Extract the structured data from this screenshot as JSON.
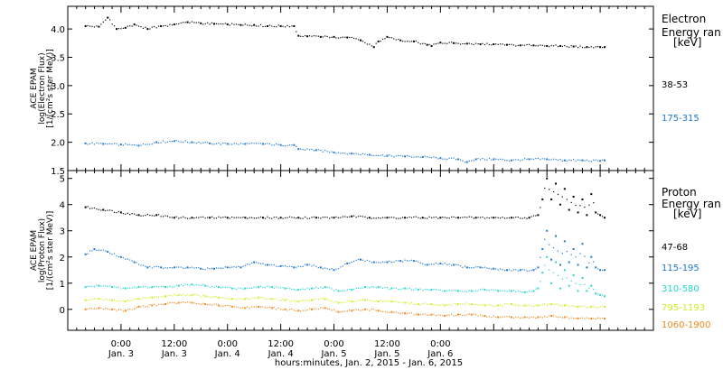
{
  "chart_data": [
    {
      "type": "scatter",
      "ylabel": [
        "ACE EPAM",
        "log(Electron Flux)",
        "[1/(cm²s ster MeV)]"
      ],
      "ylim": [
        1.5,
        4.4
      ],
      "yticks": [
        "1.5",
        "2.0",
        "2.5",
        "3.0",
        "3.5",
        "4.0"
      ],
      "legend_title": [
        "Electron",
        "Energy ran",
        "[keV]"
      ],
      "series": [
        {
          "name": "38-53",
          "color": "#000000",
          "x": [
            -8,
            -5,
            -3,
            -1,
            1,
            3,
            6,
            9,
            12,
            15,
            18,
            21,
            24,
            27,
            30,
            33,
            36,
            39,
            40,
            42,
            45,
            48,
            51,
            54,
            57,
            58,
            60,
            63,
            66,
            69,
            70,
            72,
            75,
            78,
            81,
            84,
            87,
            90,
            93,
            96,
            99,
            102,
            105,
            108,
            109
          ],
          "y": [
            4.05,
            4.04,
            4.2,
            4.0,
            4.02,
            4.08,
            4.0,
            4.05,
            4.08,
            4.12,
            4.1,
            4.09,
            4.08,
            4.07,
            4.07,
            4.05,
            4.05,
            4.05,
            3.88,
            3.87,
            3.86,
            3.86,
            3.85,
            3.8,
            3.68,
            3.78,
            3.86,
            3.8,
            3.78,
            3.72,
            3.7,
            3.76,
            3.75,
            3.74,
            3.73,
            3.73,
            3.72,
            3.71,
            3.71,
            3.7,
            3.7,
            3.69,
            3.68,
            3.68,
            3.68
          ]
        },
        {
          "name": "175-315",
          "color": "#1e78d2",
          "x": [
            -8,
            -4,
            0,
            4,
            8,
            12,
            16,
            20,
            24,
            28,
            32,
            36,
            39,
            40,
            44,
            48,
            52,
            56,
            60,
            64,
            68,
            72,
            76,
            78,
            80,
            84,
            88,
            92,
            96,
            100,
            104,
            108,
            109
          ],
          "y": [
            1.98,
            1.97,
            1.96,
            1.94,
            2.0,
            2.02,
            2.0,
            1.98,
            1.97,
            1.97,
            1.97,
            1.95,
            1.95,
            1.88,
            1.86,
            1.82,
            1.8,
            1.78,
            1.76,
            1.75,
            1.74,
            1.72,
            1.7,
            1.65,
            1.7,
            1.7,
            1.68,
            1.7,
            1.7,
            1.68,
            1.68,
            1.67,
            1.68
          ]
        }
      ]
    },
    {
      "type": "scatter",
      "ylabel": [
        "ACE EPAM",
        "log(Proton Flux)",
        "[1/(cm²s ster MeV)]"
      ],
      "ylim": [
        -0.8,
        5.3
      ],
      "yticks": [
        "0",
        "1",
        "2",
        "3",
        "4",
        "5"
      ],
      "legend_title": [
        "Proton",
        "Energy ran",
        "[keV]"
      ],
      "series": [
        {
          "name": "47-68",
          "color": "#000000",
          "x": [
            -8,
            -4,
            0,
            4,
            8,
            12,
            16,
            20,
            24,
            28,
            32,
            36,
            40,
            44,
            48,
            52,
            56,
            60,
            64,
            68,
            72,
            76,
            80,
            84,
            88,
            92,
            94,
            95,
            96,
            97,
            98,
            99,
            100,
            101,
            102,
            103,
            104,
            105,
            106,
            107,
            108,
            109
          ],
          "y": [
            3.9,
            3.8,
            3.7,
            3.6,
            3.6,
            3.5,
            3.5,
            3.5,
            3.5,
            3.5,
            3.5,
            3.5,
            3.5,
            3.5,
            3.5,
            3.55,
            3.5,
            3.5,
            3.5,
            3.5,
            3.5,
            3.5,
            3.5,
            3.5,
            3.5,
            3.5,
            3.6,
            4.2,
            5.0,
            4.2,
            4.8,
            4.0,
            4.6,
            3.8,
            4.3,
            3.7,
            4.2,
            3.6,
            4.4,
            3.7,
            3.6,
            3.5
          ]
        },
        {
          "name": "115-195",
          "color": "#1e78d2",
          "x": [
            -8,
            -6,
            -3,
            0,
            3,
            6,
            9,
            12,
            15,
            18,
            21,
            24,
            27,
            30,
            33,
            36,
            39,
            42,
            45,
            48,
            51,
            54,
            57,
            60,
            63,
            66,
            69,
            72,
            75,
            78,
            81,
            84,
            87,
            90,
            93,
            94,
            95,
            96,
            97,
            98,
            99,
            100,
            101,
            102,
            103,
            104,
            105,
            106,
            107,
            108,
            109
          ],
          "y": [
            2.1,
            2.3,
            2.2,
            2.0,
            1.8,
            1.6,
            1.6,
            1.6,
            1.6,
            1.55,
            1.55,
            1.6,
            1.6,
            1.8,
            1.7,
            1.65,
            1.6,
            1.7,
            1.6,
            1.5,
            1.75,
            1.9,
            1.8,
            1.8,
            1.85,
            1.85,
            1.7,
            1.75,
            1.7,
            1.6,
            1.6,
            1.55,
            1.5,
            1.5,
            1.5,
            1.6,
            2.3,
            3.0,
            1.9,
            2.8,
            1.7,
            2.6,
            1.8,
            2.3,
            1.7,
            2.5,
            1.6,
            2.0,
            1.6,
            1.5,
            1.5
          ]
        },
        {
          "name": "310-580",
          "color": "#22d8d0",
          "x": [
            -8,
            -5,
            -2,
            1,
            4,
            7,
            10,
            13,
            16,
            19,
            22,
            25,
            28,
            31,
            34,
            37,
            40,
            43,
            46,
            49,
            52,
            55,
            58,
            61,
            64,
            67,
            70,
            73,
            76,
            79,
            82,
            85,
            88,
            91,
            93,
            94,
            95,
            96,
            97,
            98,
            99,
            100,
            101,
            102,
            103,
            104,
            105,
            106,
            107,
            108,
            109
          ],
          "y": [
            0.85,
            0.9,
            0.85,
            0.8,
            0.85,
            0.85,
            0.85,
            0.9,
            0.95,
            0.9,
            0.85,
            0.8,
            0.8,
            0.85,
            0.85,
            0.8,
            0.75,
            0.8,
            0.85,
            0.7,
            0.75,
            0.85,
            0.85,
            0.8,
            0.8,
            0.75,
            0.75,
            0.7,
            0.7,
            0.7,
            0.75,
            0.7,
            0.7,
            0.65,
            0.7,
            0.8,
            1.4,
            2.0,
            1.0,
            1.8,
            0.8,
            1.5,
            0.9,
            1.3,
            0.7,
            1.2,
            0.7,
            0.9,
            0.6,
            0.55,
            0.5
          ]
        },
        {
          "name": "795-1193",
          "color": "#ccee22",
          "x": [
            -8,
            -5,
            -2,
            1,
            4,
            7,
            10,
            13,
            16,
            19,
            22,
            25,
            28,
            31,
            34,
            37,
            40,
            43,
            46,
            49,
            52,
            55,
            58,
            61,
            64,
            67,
            70,
            73,
            76,
            79,
            82,
            85,
            88,
            91,
            94,
            97,
            100,
            103,
            106,
            109
          ],
          "y": [
            0.35,
            0.4,
            0.35,
            0.3,
            0.4,
            0.45,
            0.5,
            0.55,
            0.55,
            0.5,
            0.45,
            0.4,
            0.4,
            0.45,
            0.4,
            0.35,
            0.3,
            0.35,
            0.4,
            0.25,
            0.3,
            0.35,
            0.3,
            0.3,
            0.25,
            0.2,
            0.2,
            0.15,
            0.2,
            0.2,
            0.15,
            0.15,
            0.2,
            0.15,
            0.15,
            0.2,
            0.15,
            0.1,
            0.1,
            0.1
          ]
        },
        {
          "name": "1060-1900",
          "color": "#f08a1e",
          "x": [
            -8,
            -5,
            -2,
            1,
            4,
            7,
            10,
            13,
            16,
            19,
            22,
            25,
            28,
            31,
            34,
            37,
            40,
            43,
            46,
            49,
            52,
            55,
            58,
            61,
            64,
            67,
            70,
            73,
            76,
            79,
            82,
            85,
            88,
            91,
            94,
            97,
            100,
            103,
            106,
            109
          ],
          "y": [
            0.0,
            0.05,
            0.0,
            -0.05,
            0.1,
            0.15,
            0.2,
            0.25,
            0.25,
            0.2,
            0.15,
            0.1,
            0.05,
            0.1,
            0.05,
            0.0,
            -0.05,
            0.0,
            0.05,
            -0.1,
            -0.05,
            0.0,
            -0.05,
            -0.1,
            -0.15,
            -0.2,
            -0.2,
            -0.25,
            -0.2,
            -0.2,
            -0.25,
            -0.3,
            -0.3,
            -0.3,
            -0.3,
            -0.25,
            -0.3,
            -0.35,
            -0.35,
            -0.35
          ]
        }
      ]
    }
  ],
  "xaxis": {
    "range_hours": [
      -12,
      120
    ],
    "tick_hours": [
      0,
      24,
      48,
      72,
      96,
      120
    ],
    "major_labels": [
      "0:00",
      "12:00",
      "0:00",
      "12:00",
      "0:00",
      "12:00",
      "0:00"
    ],
    "minor_labels": [
      "Jan. 3",
      "Jan. 3",
      "Jan. 4",
      "Jan. 4",
      "Jan. 5",
      "Jan. 5",
      "Jan. 6"
    ],
    "label_hours": [
      0,
      12,
      24,
      36,
      48,
      60,
      72
    ],
    "title": "hours:minutes, Jan.  2, 2015 - Jan.  6, 2015"
  }
}
